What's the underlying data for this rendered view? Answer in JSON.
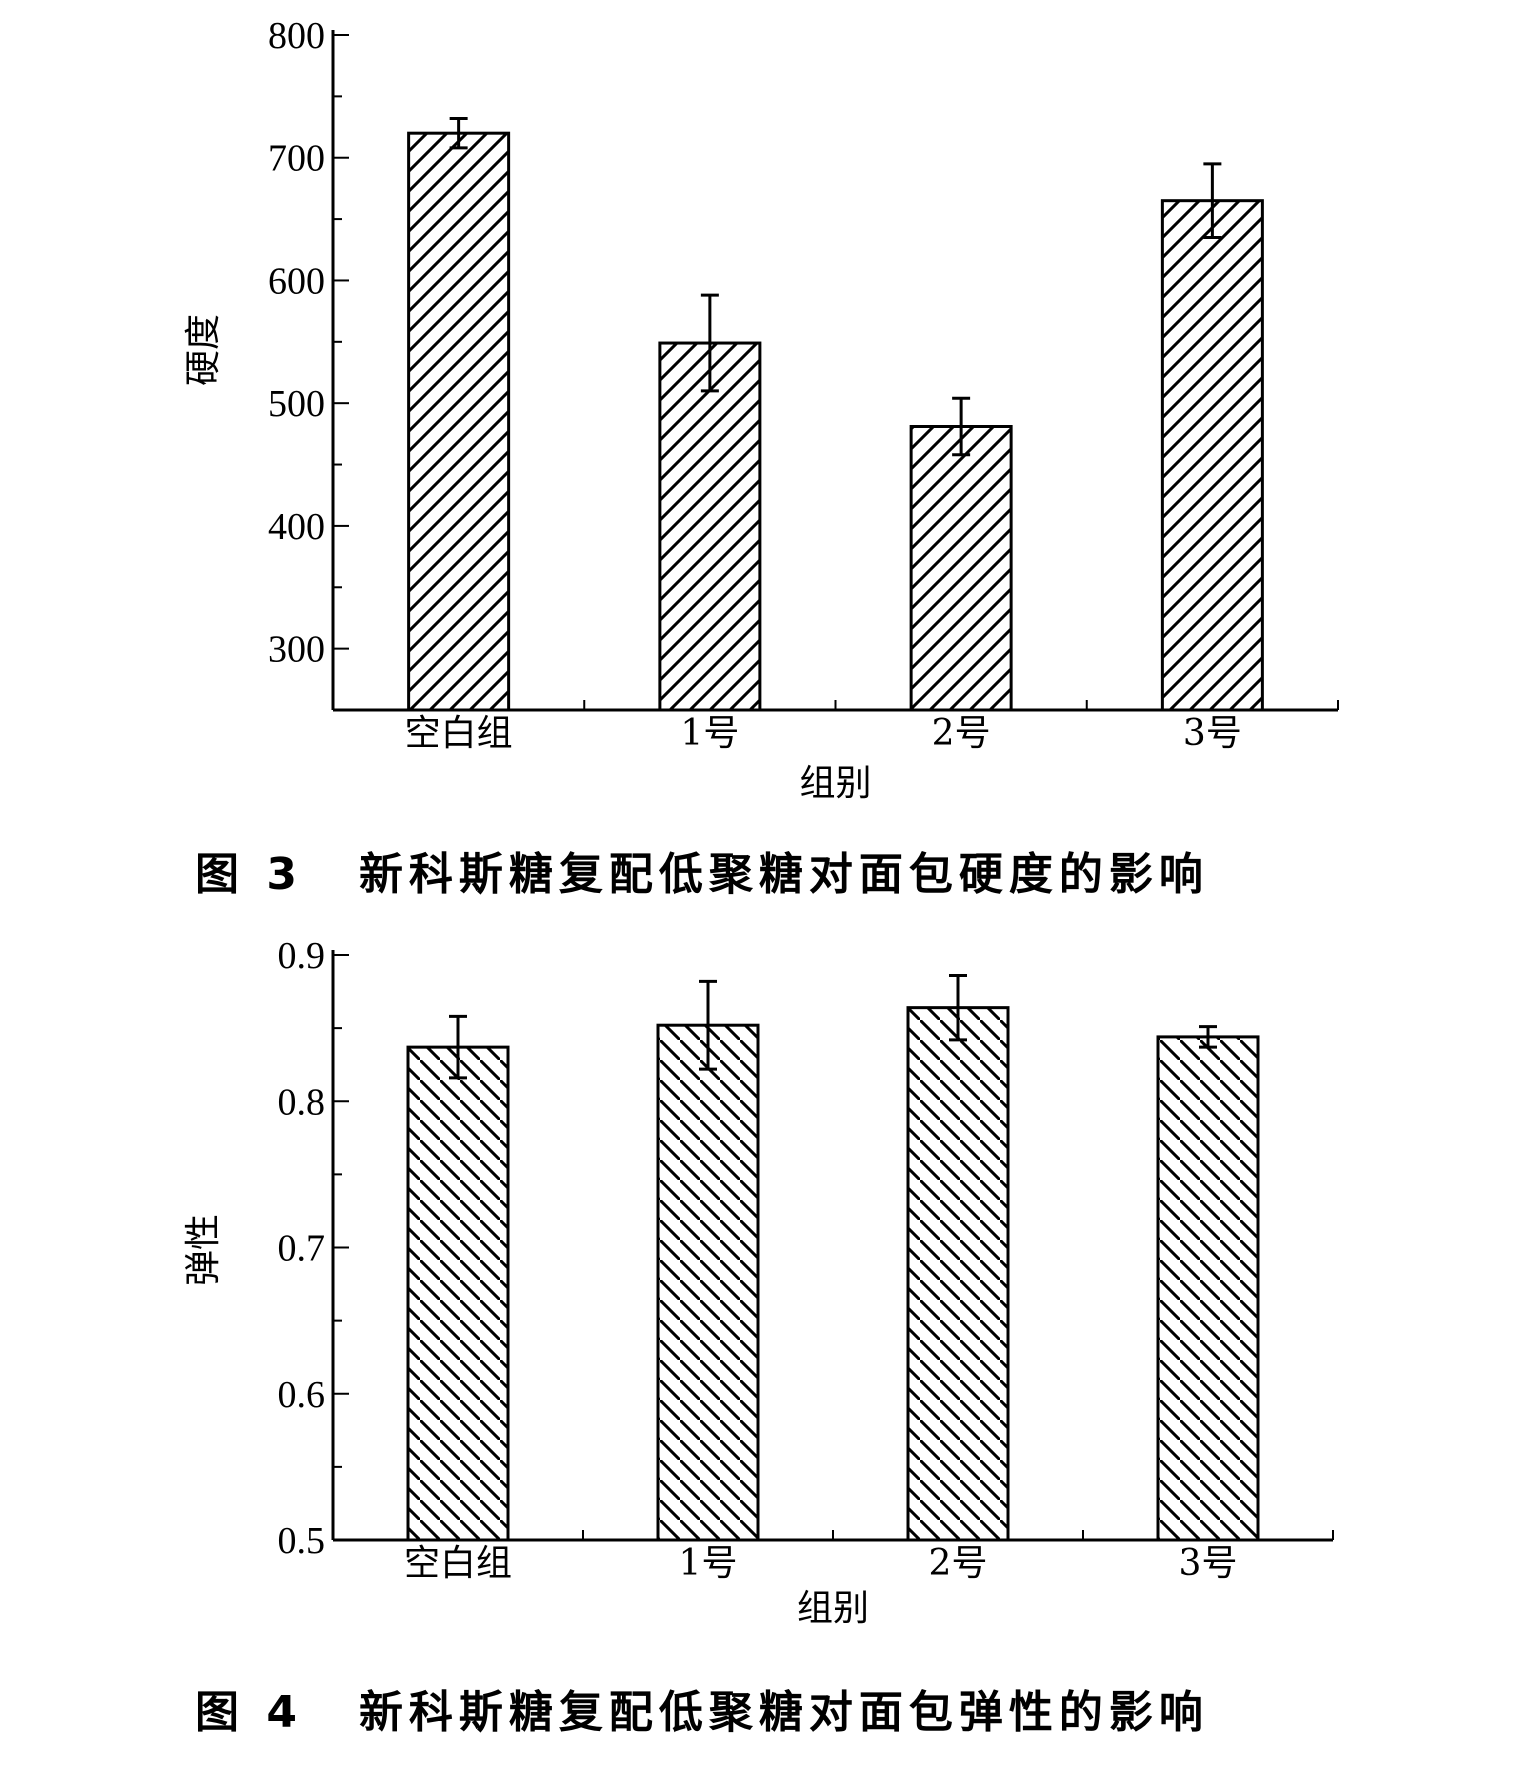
{
  "chart_data": [
    {
      "type": "bar",
      "figure_label": "图 3",
      "title": "新科斯糖复配低聚糖对面包硬度的影响",
      "xlabel": "组别",
      "ylabel": "硬度",
      "categories": [
        "空白组",
        "1号",
        "2号",
        "3号"
      ],
      "values": [
        720,
        549,
        481,
        665
      ],
      "errors": [
        12,
        39,
        23,
        30
      ],
      "ylim": [
        250,
        800
      ],
      "yticks": [
        300,
        400,
        500,
        600,
        700,
        800
      ],
      "ytick_labels": [
        "300",
        "400",
        "500",
        "600",
        "700",
        "800"
      ],
      "hatch": "forward-diagonal",
      "grid": false,
      "legend": "none"
    },
    {
      "type": "bar",
      "figure_label": "图 4",
      "title": "新科斯糖复配低聚糖对面包弹性的影响",
      "xlabel": "组别",
      "ylabel": "弹性",
      "categories": [
        "空白组",
        "1号",
        "2号",
        "3号"
      ],
      "values": [
        0.837,
        0.852,
        0.864,
        0.844
      ],
      "errors": [
        0.021,
        0.03,
        0.022,
        0.007
      ],
      "ylim": [
        0.5,
        0.9
      ],
      "yticks": [
        0.5,
        0.6,
        0.7,
        0.8,
        0.9
      ],
      "ytick_labels": [
        "0.5",
        "0.6",
        "0.7",
        "0.8",
        "0.9"
      ],
      "hatch": "back-diagonal",
      "grid": false,
      "legend": "none"
    }
  ]
}
